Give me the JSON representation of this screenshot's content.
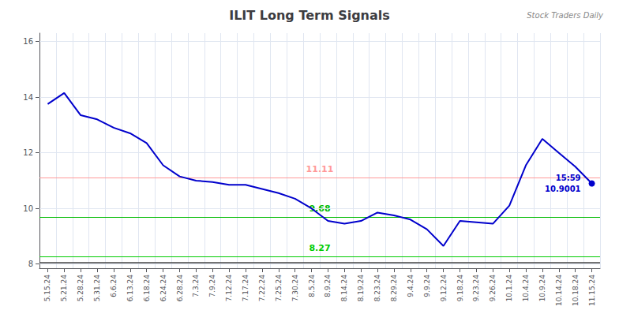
{
  "chart_data": {
    "type": "line",
    "title": "ILIT Long Term Signals",
    "categories": [
      "5.15.24",
      "5.21.24",
      "5.28.24",
      "5.31.24",
      "6.6.24",
      "6.13.24",
      "6.18.24",
      "6.24.24",
      "6.28.24",
      "7.3.24",
      "7.9.24",
      "7.12.24",
      "7.17.24",
      "7.22.24",
      "7.25.24",
      "7.30.24",
      "8.5.24",
      "8.9.24",
      "8.14.24",
      "8.19.24",
      "8.23.24",
      "8.29.24",
      "9.4.24",
      "9.9.24",
      "9.12.24",
      "9.18.24",
      "9.23.24",
      "9.26.24",
      "10.1.24",
      "10.4.24",
      "10.9.24",
      "10.14.24",
      "10.18.24",
      "11.15.24"
    ],
    "values": [
      13.75,
      14.15,
      13.35,
      13.2,
      12.9,
      12.7,
      12.35,
      11.55,
      11.15,
      11.0,
      10.95,
      10.85,
      10.85,
      10.7,
      10.55,
      10.35,
      10.0,
      9.55,
      9.45,
      9.55,
      9.85,
      9.75,
      9.6,
      9.25,
      8.65,
      9.55,
      9.5,
      9.45,
      10.1,
      11.55,
      12.5,
      12.0,
      11.5,
      10.9001
    ],
    "color": "#0000CC",
    "hlines": [
      {
        "value": 11.11,
        "label": "11.11",
        "color": "#FF9999"
      },
      {
        "value": 9.68,
        "label": "9.68",
        "color": "#00BB00"
      },
      {
        "value": 8.27,
        "label": "8.27",
        "color": "#00CC00"
      },
      {
        "value": 8.05,
        "color": "#444444"
      }
    ],
    "annotations": [
      "15:59",
      "10.9001"
    ],
    "watermark": "Stock Traders Daily",
    "ylim": [
      7.85,
      16.3
    ],
    "yticks": [
      8,
      10,
      12,
      14,
      16
    ],
    "grid": true
  }
}
